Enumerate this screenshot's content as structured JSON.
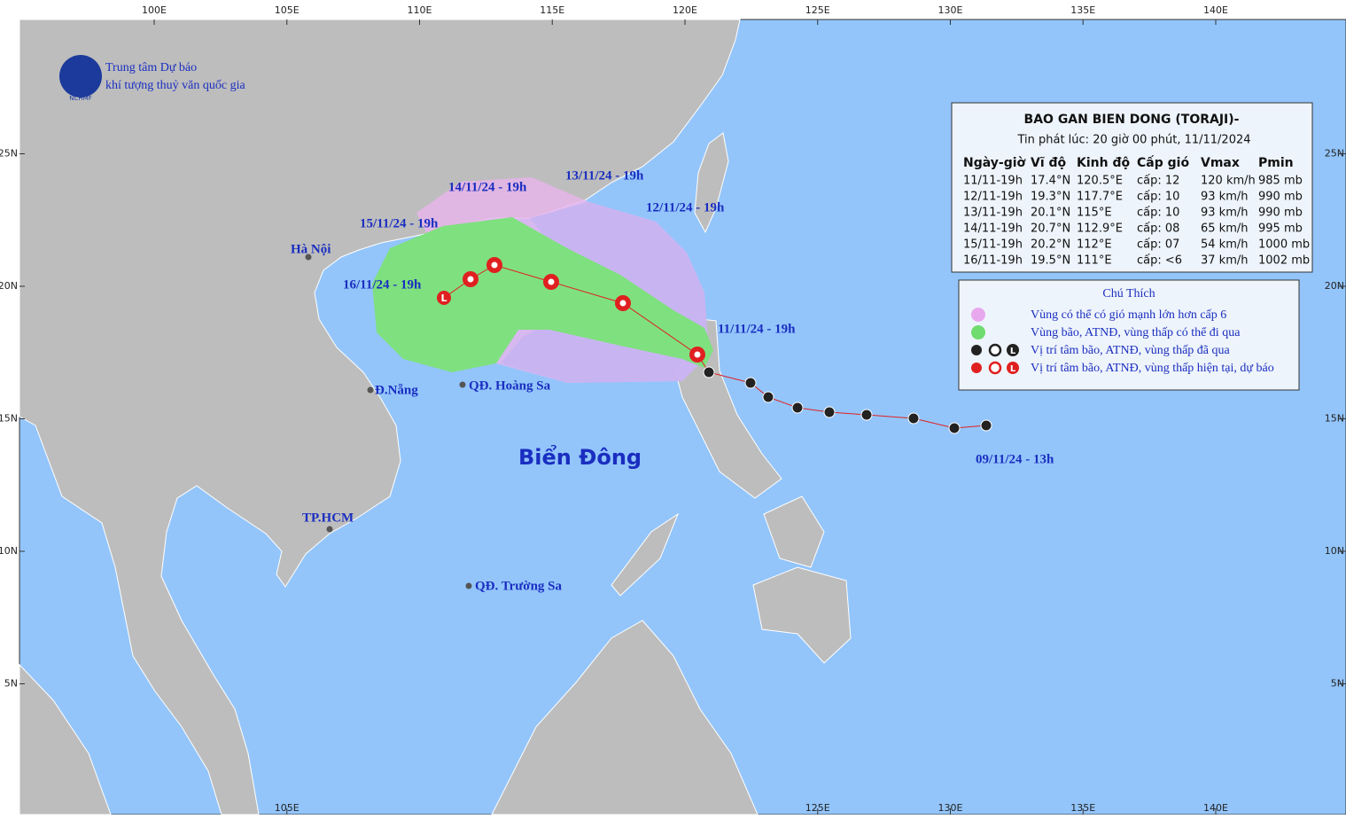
{
  "header": {
    "org": [
      "Trung tâm Dự báo",
      "khí tượng thuỷ văn quốc gia"
    ],
    "logo": "NCHMF"
  },
  "axes": {
    "top": [
      {
        "value": 100,
        "label": "100E"
      },
      {
        "value": 105,
        "label": "105E"
      },
      {
        "value": 110,
        "label": "110E"
      },
      {
        "value": 115,
        "label": "115E"
      },
      {
        "value": 120,
        "label": "120E"
      },
      {
        "value": 125,
        "label": "125E"
      },
      {
        "value": 130,
        "label": "130E"
      },
      {
        "value": 135,
        "label": "135E"
      },
      {
        "value": 140,
        "label": "140E"
      }
    ],
    "bottom": [
      {
        "value": 105,
        "label": "105E"
      },
      {
        "value": 125,
        "label": "125E"
      },
      {
        "value": 130,
        "label": "130E"
      },
      {
        "value": 135,
        "label": "135E"
      },
      {
        "value": 140,
        "label": "140E"
      }
    ],
    "left": [
      {
        "value": 25,
        "label": "25N"
      },
      {
        "value": 20,
        "label": "20N"
      },
      {
        "value": 15,
        "label": "15N"
      },
      {
        "value": 10,
        "label": "10N"
      },
      {
        "value": 5,
        "label": "5N"
      }
    ],
    "right": [
      {
        "value": 25,
        "label": "25N"
      },
      {
        "value": 20,
        "label": "20N"
      },
      {
        "value": 15,
        "label": "15N"
      },
      {
        "value": 10,
        "label": "10N"
      },
      {
        "value": 5,
        "label": "5N"
      }
    ]
  },
  "bulletin": {
    "title": "BAO GAN BIEN DONG (TORAJI)-",
    "issued": "Tin phát lúc: 20 giờ 00 phút, 11/11/2024",
    "columns": [
      "Ngày-giờ",
      "Vĩ độ",
      "Kinh độ",
      "Cấp gió",
      "Vmax",
      "Pmin"
    ],
    "rows": [
      [
        "11/11-19h",
        "17.4°N",
        "120.5°E",
        "cấp: 12",
        "120 km/h",
        "985 mb"
      ],
      [
        "12/11-19h",
        "19.3°N",
        "117.7°E",
        "cấp: 10",
        "93 km/h",
        "990 mb"
      ],
      [
        "13/11-19h",
        "20.1°N",
        "115°E",
        "cấp: 10",
        "93 km/h",
        "990 mb"
      ],
      [
        "14/11-19h",
        "20.7°N",
        "112.9°E",
        "cấp: 08",
        "65 km/h",
        "995 mb"
      ],
      [
        "15/11-19h",
        "20.2°N",
        "112°E",
        "cấp: 07",
        "54 km/h",
        "1000 mb"
      ],
      [
        "16/11-19h",
        "19.5°N",
        "111°E",
        "cấp: <6",
        "37 km/h",
        "1002 mb"
      ]
    ]
  },
  "legend": {
    "title": "Chú Thích",
    "items": [
      "Vùng có thể có gió mạnh lớn hơn cấp 6",
      "Vùng bão, ATNĐ, vùng thấp có thể đi qua",
      "Vị trí tâm bão, ATNĐ, vùng thấp đã qua",
      "Vị trí tâm bão, ATNĐ, vùng thấp hiện tại, dự báo"
    ],
    "low": "L"
  },
  "places": [
    "Hà Nội",
    "Đ.Nẵng",
    "QĐ. Hoàng Sa",
    "TP.HCM",
    "QĐ. Trường Sa"
  ],
  "sea": "Biển Đông",
  "track_labels": [
    "11/11/24 - 19h",
    "12/11/24 - 19h",
    "13/11/24 - 19h",
    "14/11/24 - 19h",
    "15/11/24 - 19h",
    "16/11/24 - 19h",
    "09/11/24 - 13h"
  ]
}
